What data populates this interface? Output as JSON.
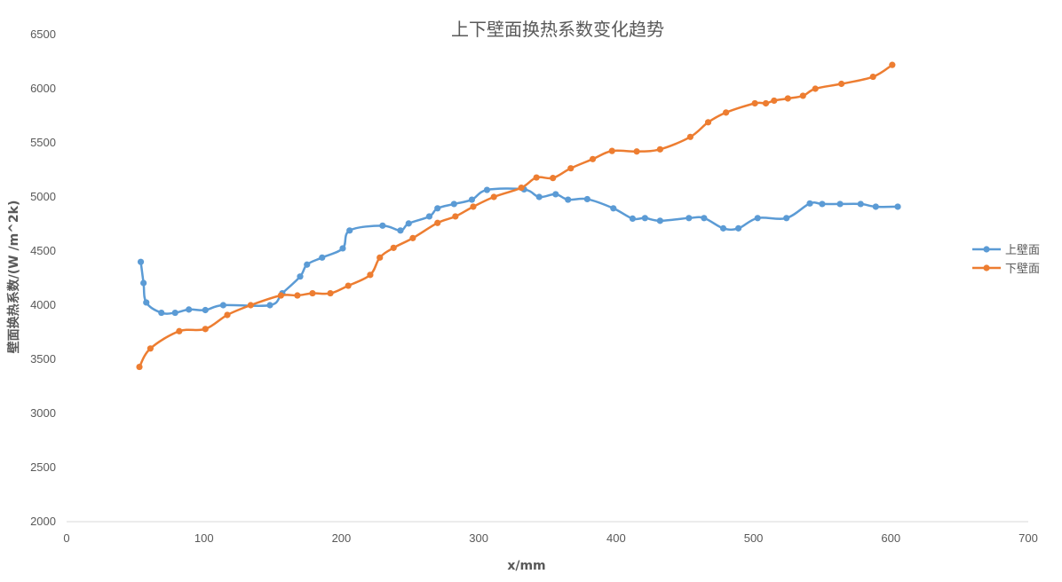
{
  "chart_data": {
    "type": "line",
    "title": "上下壁面换热系数变化趋势",
    "xlabel": "x/mm",
    "ylabel": "壁面换热系数/(W /m^2k)",
    "xlim": [
      0,
      700
    ],
    "ylim": [
      2000,
      6500
    ],
    "xticks": [
      "0",
      "100",
      "200",
      "300",
      "400",
      "500",
      "600",
      "700"
    ],
    "yticks": [
      "2000",
      "2500",
      "3000",
      "3500",
      "4000",
      "4500",
      "5000",
      "5500",
      "6000",
      "6500"
    ],
    "grid": false,
    "legend_position": "right",
    "series": [
      {
        "name": "上壁面",
        "color": "#5b9bd5",
        "x": [
          54,
          56,
          58,
          69,
          79,
          89,
          101,
          114,
          148,
          157,
          170,
          175,
          186,
          201,
          206,
          230,
          243,
          249,
          264,
          270,
          282,
          295,
          306,
          333,
          344,
          356,
          365,
          379,
          398,
          412,
          421,
          432,
          453,
          464,
          478,
          489,
          503,
          524,
          541,
          550,
          563,
          578,
          589,
          605
        ],
        "y": [
          4400,
          4205,
          4025,
          3930,
          3930,
          3960,
          3955,
          4000,
          4000,
          4110,
          4265,
          4375,
          4440,
          4525,
          4690,
          4735,
          4690,
          4755,
          4820,
          4895,
          4935,
          4975,
          5065,
          5070,
          5000,
          5025,
          4975,
          4980,
          4895,
          4800,
          4805,
          4780,
          4805,
          4805,
          4710,
          4710,
          4805,
          4805,
          4940,
          4935,
          4935,
          4935,
          4910,
          4910
        ]
      },
      {
        "name": "下壁面",
        "color": "#ed7d31",
        "x": [
          53,
          61,
          82,
          101,
          117,
          134,
          156,
          168,
          179,
          192,
          205,
          221,
          228,
          238,
          252,
          270,
          283,
          296,
          311,
          331,
          342,
          354,
          367,
          383,
          397,
          415,
          432,
          454,
          467,
          480,
          501,
          509,
          515,
          525,
          536,
          545,
          564,
          587,
          601
        ],
        "y": [
          3430,
          3600,
          3760,
          3780,
          3910,
          4000,
          4090,
          4090,
          4110,
          4110,
          4180,
          4280,
          4440,
          4530,
          4620,
          4760,
          4820,
          4910,
          5000,
          5085,
          5180,
          5175,
          5265,
          5350,
          5425,
          5420,
          5440,
          5555,
          5690,
          5780,
          5865,
          5865,
          5890,
          5910,
          5935,
          6000,
          6045,
          6110,
          6220
        ]
      }
    ]
  }
}
